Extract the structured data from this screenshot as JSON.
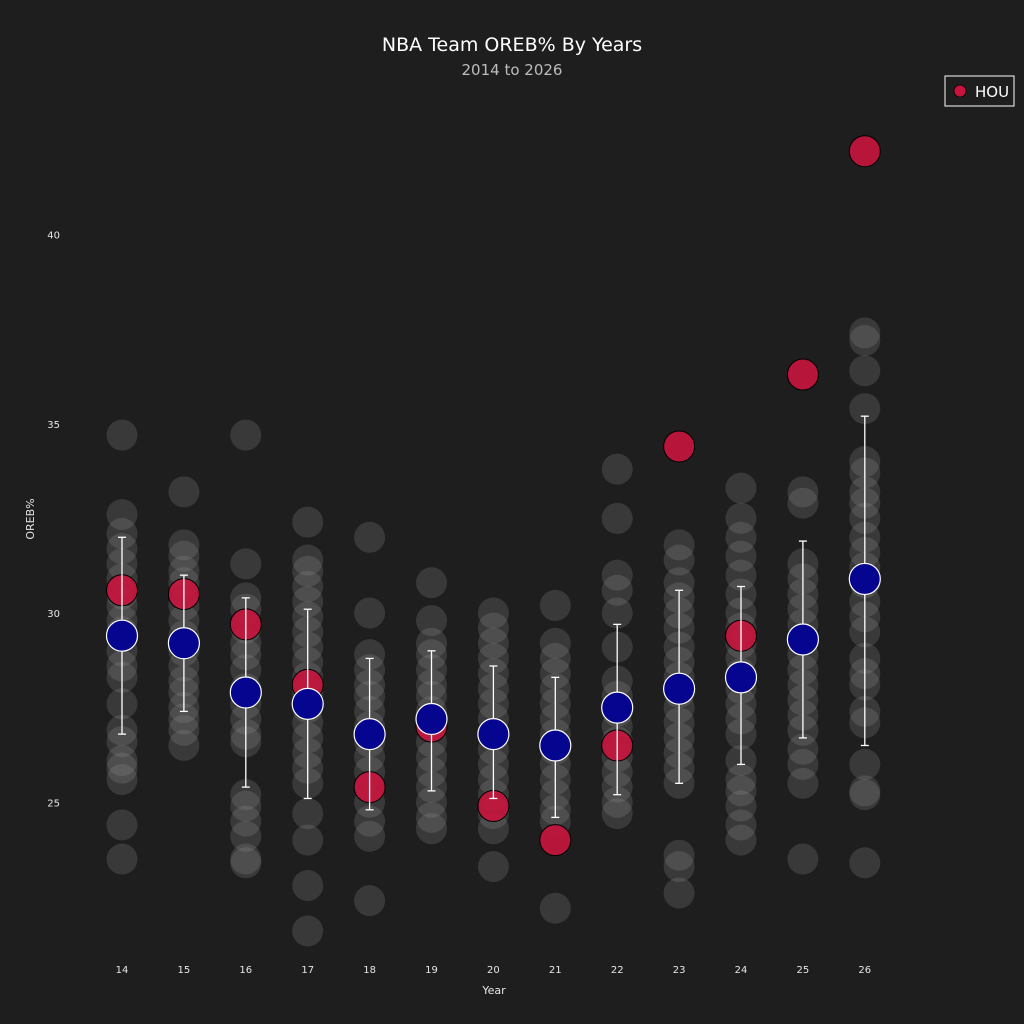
{
  "chart_data": {
    "type": "scatter",
    "title": "NBA Team OREB% By Years",
    "subtitle": "2014 to 2026",
    "xlabel": "Year",
    "ylabel": "OREB%",
    "x_ticks": [
      "14",
      "15",
      "16",
      "17",
      "18",
      "19",
      "20",
      "21",
      "22",
      "23",
      "24",
      "25",
      "26"
    ],
    "y_ticks": [
      25,
      30,
      35,
      40
    ],
    "ylim": [
      20.6,
      44.0
    ],
    "grid": false,
    "legend": {
      "position": "top-right",
      "entries": [
        "HOU"
      ]
    },
    "colors": {
      "background": "#1e1e1e",
      "league": "#9a9a9a",
      "highlight": "#c8143c",
      "mean": "#050590",
      "errorbar": "#ffffff"
    },
    "league_teams": {
      "14": [
        34.7,
        32.6,
        32.1,
        31.7,
        31.3,
        30.9,
        30.5,
        30.2,
        29.8,
        29.5,
        29.0,
        28.6,
        28.3,
        27.6,
        26.9,
        26.6,
        26.1,
        25.9,
        25.6,
        24.4,
        23.5
      ],
      "15": [
        33.2,
        31.8,
        31.5,
        31.1,
        30.8,
        30.5,
        30.2,
        29.8,
        29.4,
        29.0,
        28.6,
        28.2,
        27.9,
        27.5,
        27.2,
        26.9,
        26.5
      ],
      "16": [
        34.7,
        31.3,
        30.4,
        30.1,
        29.6,
        29.2,
        28.9,
        28.5,
        28.0,
        27.6,
        27.2,
        26.8,
        26.6,
        25.2,
        24.9,
        24.5,
        24.1,
        23.5,
        23.4
      ],
      "17": [
        32.4,
        31.4,
        31.1,
        30.7,
        30.3,
        29.9,
        29.5,
        29.1,
        28.7,
        28.3,
        27.9,
        27.5,
        27.1,
        26.7,
        26.3,
        25.9,
        25.5,
        24.7,
        24.0,
        22.8,
        21.6
      ],
      "18": [
        32.0,
        30.0,
        28.9,
        28.5,
        28.1,
        27.8,
        27.4,
        27.0,
        26.6,
        26.2,
        25.8,
        25.4,
        25.0,
        24.5,
        24.1,
        22.4
      ],
      "19": [
        30.8,
        29.8,
        29.2,
        28.9,
        28.5,
        28.1,
        27.8,
        27.4,
        27.0,
        26.6,
        26.2,
        25.8,
        25.4,
        25.0,
        24.6,
        24.3
      ],
      "20": [
        30.0,
        29.6,
        29.2,
        28.8,
        28.4,
        28.0,
        27.6,
        27.2,
        26.8,
        26.4,
        26.0,
        25.6,
        25.2,
        24.7,
        24.3,
        23.3
      ],
      "21": [
        30.2,
        29.2,
        28.8,
        28.4,
        28.0,
        27.6,
        27.2,
        26.8,
        26.4,
        26.0,
        25.6,
        25.2,
        24.8,
        24.5,
        22.2
      ],
      "22": [
        33.8,
        32.5,
        31.0,
        30.6,
        30.0,
        29.1,
        28.2,
        27.8,
        27.4,
        27.0,
        26.6,
        26.2,
        25.8,
        25.4,
        25.0,
        24.7
      ],
      "23": [
        31.8,
        31.4,
        30.8,
        30.4,
        30.0,
        29.6,
        29.1,
        28.7,
        28.3,
        27.9,
        27.5,
        27.1,
        26.7,
        26.3,
        25.9,
        25.5,
        23.6,
        23.3,
        22.6
      ],
      "24": [
        33.3,
        32.5,
        32.0,
        31.5,
        31.0,
        30.5,
        30.0,
        29.6,
        29.2,
        28.8,
        28.4,
        28.0,
        27.6,
        27.2,
        26.8,
        26.1,
        25.6,
        25.3,
        24.9,
        24.4,
        24.0
      ],
      "25": [
        33.2,
        32.9,
        31.3,
        30.9,
        30.5,
        30.1,
        29.7,
        29.3,
        28.9,
        28.5,
        28.1,
        27.7,
        27.3,
        26.9,
        26.4,
        26.0,
        25.5,
        23.5
      ],
      "26": [
        37.4,
        37.2,
        36.4,
        35.4,
        34.0,
        33.7,
        33.2,
        32.9,
        32.5,
        32.0,
        31.6,
        31.2,
        30.8,
        30.3,
        29.9,
        29.5,
        28.8,
        28.4,
        28.1,
        27.4,
        27.1,
        26.0,
        25.3,
        25.2,
        23.4
      ]
    },
    "series": [
      {
        "name": "HOU",
        "values": [
          30.6,
          30.5,
          29.7,
          28.1,
          25.4,
          27.0,
          24.9,
          24.0,
          26.5,
          34.4,
          29.4,
          36.3,
          42.2
        ]
      }
    ],
    "league_mean": [
      29.4,
      29.2,
      27.9,
      27.6,
      26.8,
      27.2,
      26.8,
      26.5,
      27.5,
      28.0,
      28.3,
      29.3,
      30.9
    ],
    "error_low": [
      26.8,
      27.4,
      25.4,
      25.1,
      24.8,
      25.3,
      25.1,
      24.6,
      25.2,
      25.5,
      26.0,
      26.7,
      26.5
    ],
    "error_high": [
      32.0,
      31.0,
      30.4,
      30.1,
      28.8,
      29.0,
      28.6,
      28.3,
      29.7,
      30.6,
      30.7,
      31.9,
      35.2
    ]
  }
}
